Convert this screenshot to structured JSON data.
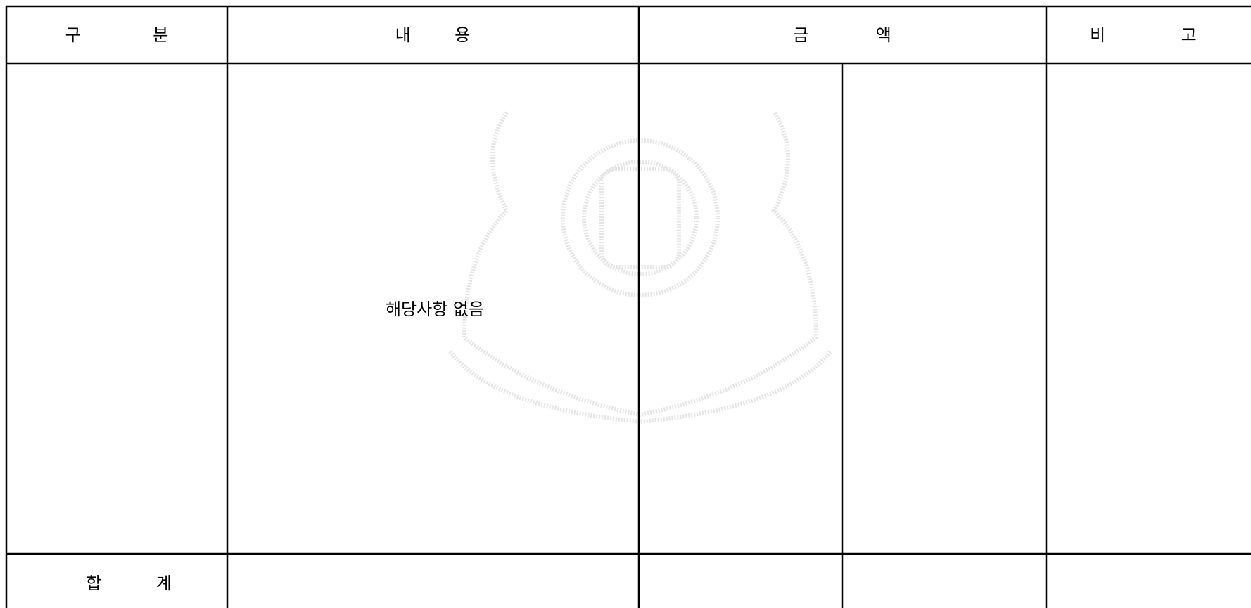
{
  "table": {
    "header": [
      "구 분",
      "내 용",
      "금 액",
      "비 고"
    ],
    "body_text": "해당사항 없음",
    "footer_label": "합 계"
  }
}
